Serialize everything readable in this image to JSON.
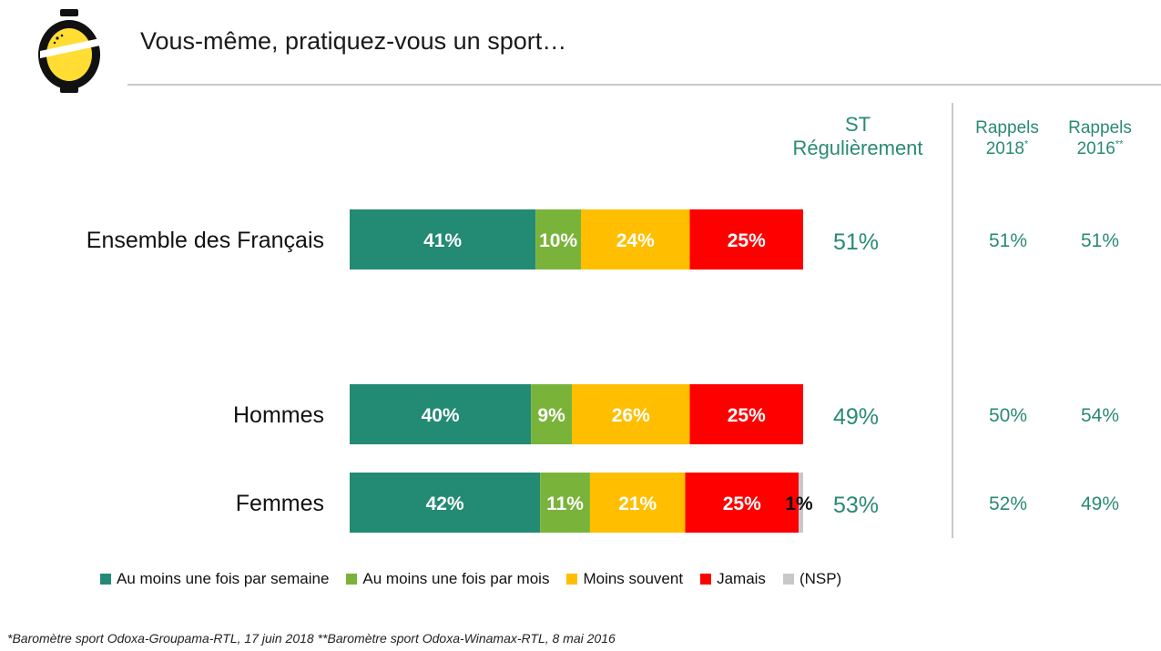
{
  "header": {
    "title": "Vous-même, pratiquez-vous un sport…",
    "logo_icon": "lemon-odoxa-logo-icon"
  },
  "columns": {
    "st_line1": "ST",
    "st_line2": "Régulièrement",
    "r18_line1": "Rappels",
    "r18_line2": "2018",
    "r18_mark": "*",
    "r16_line1": "Rappels",
    "r16_line2": "2016",
    "r16_mark": "**"
  },
  "chart_data": {
    "type": "bar",
    "orientation": "horizontal",
    "stacked": true,
    "categories": [
      "Ensemble des Français",
      "Hommes",
      "Femmes"
    ],
    "series": [
      {
        "name": "Au moins une fois par semaine",
        "values": [
          41,
          40,
          42
        ],
        "labels": [
          "41%",
          "40%",
          "42%"
        ],
        "color": "#238a73",
        "text_color": "#ffffff"
      },
      {
        "name": "Au moins une fois par mois",
        "values": [
          10,
          9,
          11
        ],
        "labels": [
          "10%",
          "9%",
          "11%"
        ],
        "color": "#7ab33a",
        "text_color": "#ffffff"
      },
      {
        "name": "Moins souvent",
        "values": [
          24,
          26,
          21
        ],
        "labels": [
          "24%",
          "26%",
          "21%"
        ],
        "color": "#ffbf00",
        "text_color": "#ffffff"
      },
      {
        "name": "Jamais",
        "values": [
          25,
          25,
          25
        ],
        "labels": [
          "25%",
          "25%",
          "25%"
        ],
        "color": "#ff0000",
        "text_color": "#ffffff"
      },
      {
        "name": "(NSP)",
        "values": [
          0,
          0,
          1
        ],
        "labels": [
          "",
          "",
          "1%"
        ],
        "color": "#c8c8c8",
        "text_color": "#111111"
      }
    ],
    "st_regulierement": [
      "51%",
      "49%",
      "53%"
    ],
    "rappels_2018": [
      "51%",
      "50%",
      "52%"
    ],
    "rappels_2016": [
      "51%",
      "54%",
      "49%"
    ],
    "legend_position": "bottom",
    "grid": false
  },
  "footnote": "*Baromètre sport Odoxa-Groupama-RTL, 17 juin 2018 **Baromètre sport Odoxa-Winamax-RTL, 8 mai 2016"
}
